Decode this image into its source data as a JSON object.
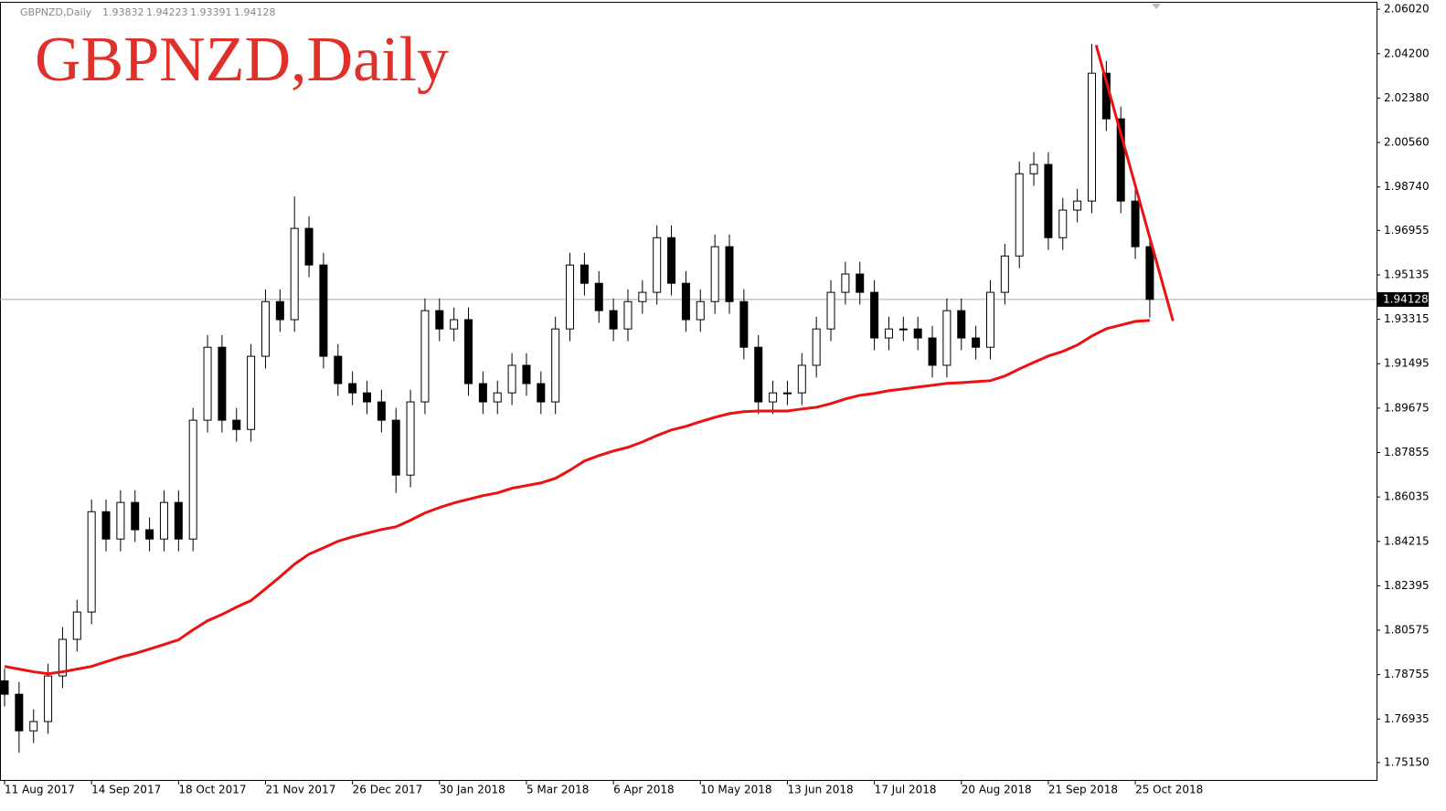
{
  "chart_data": {
    "type": "candlestick",
    "title": "GBPNZD,Daily",
    "info": {
      "symbol": "GBPNZD,Daily",
      "ohlc": [
        1.93832,
        1.94223,
        1.93391,
        1.94128
      ]
    },
    "last_price": 1.94128,
    "categories": [
      "11 Aug 2017",
      null,
      null,
      null,
      null,
      null,
      "14 Sep 2017",
      null,
      null,
      null,
      null,
      null,
      "18 Oct 2017",
      null,
      null,
      null,
      null,
      null,
      "21 Nov 2017",
      null,
      null,
      null,
      null,
      null,
      "26 Dec 2017",
      null,
      null,
      null,
      null,
      null,
      "30 Jan 2018",
      null,
      null,
      null,
      null,
      null,
      "5 Mar 2018",
      null,
      null,
      null,
      null,
      null,
      "6 Apr 2018",
      null,
      null,
      null,
      null,
      null,
      "10 May 2018",
      null,
      null,
      null,
      null,
      null,
      "13 Jun 2018",
      null,
      null,
      null,
      null,
      null,
      "17 Jul 2018",
      null,
      null,
      null,
      null,
      null,
      "20 Aug 2018",
      null,
      null,
      null,
      null,
      null,
      "21 Sep 2018",
      null,
      null,
      null,
      null,
      null,
      "25 Oct 2018",
      null
    ],
    "open": [
      1.785,
      1.7795,
      1.7645,
      1.7683,
      1.787,
      1.802,
      1.8132,
      1.8543,
      1.8431,
      1.8581,
      1.8469,
      1.8431,
      1.8581,
      1.8431,
      1.8918,
      1.9217,
      1.8918,
      1.888,
      1.918,
      1.9404,
      1.933,
      1.9704,
      1.9554,
      1.918,
      1.9068,
      1.903,
      1.8993,
      1.8918,
      1.8693,
      1.8993,
      1.9367,
      1.9292,
      1.933,
      1.9068,
      1.8993,
      1.903,
      1.9143,
      1.9068,
      1.8993,
      1.9292,
      1.9554,
      1.9479,
      1.9367,
      1.9292,
      1.9404,
      1.9442,
      1.9666,
      1.9479,
      1.933,
      1.9404,
      1.9629,
      1.9404,
      1.9217,
      1.8993,
      1.903,
      1.903,
      1.9143,
      1.9292,
      1.9442,
      1.9517,
      1.9442,
      1.9255,
      1.9292,
      1.9292,
      1.9255,
      1.9143,
      1.9367,
      1.9255,
      1.9217,
      1.9442,
      1.9591,
      1.9928,
      1.9966,
      1.9666,
      1.9779,
      1.9816,
      2.034,
      2.0153,
      1.9816,
      1.9629
    ],
    "high": [
      1.79,
      1.7845,
      1.7733,
      1.792,
      1.807,
      1.8182,
      1.8593,
      1.8593,
      1.8631,
      1.8631,
      1.8519,
      1.8631,
      1.8631,
      1.8968,
      1.9267,
      1.9267,
      1.8968,
      1.923,
      1.9454,
      1.9454,
      1.9835,
      1.9754,
      1.9604,
      1.923,
      1.9118,
      1.908,
      1.9043,
      1.8968,
      1.9043,
      1.9417,
      1.9417,
      1.938,
      1.938,
      1.9118,
      1.908,
      1.9193,
      1.9193,
      1.9118,
      1.9342,
      1.9604,
      1.9604,
      1.9529,
      1.9417,
      1.9454,
      1.9492,
      1.9716,
      1.9716,
      1.9529,
      1.9454,
      1.9679,
      1.9679,
      1.9454,
      1.9267,
      1.908,
      1.908,
      1.9193,
      1.9342,
      1.9492,
      1.9567,
      1.9567,
      1.9492,
      1.9342,
      1.9342,
      1.9342,
      1.9305,
      1.9417,
      1.9417,
      1.9305,
      1.9492,
      1.9641,
      1.9978,
      2.0016,
      2.0016,
      1.9829,
      1.9866,
      2.046,
      2.039,
      2.0203,
      1.9866,
      1.9679
    ],
    "low": [
      1.7745,
      1.7555,
      1.7595,
      1.7633,
      1.782,
      1.797,
      1.8082,
      1.8381,
      1.8381,
      1.8419,
      1.8381,
      1.8381,
      1.8381,
      1.8381,
      1.8868,
      1.8868,
      1.883,
      1.883,
      1.913,
      1.928,
      1.928,
      1.9504,
      1.913,
      1.9018,
      1.898,
      1.8943,
      1.8868,
      1.862,
      1.8643,
      1.8943,
      1.9242,
      1.9242,
      1.9018,
      1.8943,
      1.8943,
      1.898,
      1.9018,
      1.8943,
      1.8943,
      1.9242,
      1.9429,
      1.9317,
      1.9242,
      1.9242,
      1.9354,
      1.9392,
      1.9429,
      1.928,
      1.928,
      1.9354,
      1.9354,
      1.9167,
      1.8943,
      1.8943,
      1.898,
      1.898,
      1.9093,
      1.9242,
      1.9392,
      1.9392,
      1.9205,
      1.9205,
      1.9242,
      1.9205,
      1.9093,
      1.9093,
      1.9205,
      1.9167,
      1.9167,
      1.9392,
      1.9541,
      1.9878,
      1.9616,
      1.9616,
      1.9729,
      1.9766,
      2.0103,
      1.9766,
      1.9579,
      1.9339
    ],
    "close": [
      1.7795,
      1.7645,
      1.7683,
      1.787,
      1.802,
      1.8132,
      1.8543,
      1.8431,
      1.8581,
      1.8469,
      1.8431,
      1.8581,
      1.8431,
      1.8918,
      1.9217,
      1.8918,
      1.888,
      1.918,
      1.9404,
      1.933,
      1.9704,
      1.9554,
      1.918,
      1.9068,
      1.903,
      1.8993,
      1.8918,
      1.8693,
      1.8993,
      1.9367,
      1.9292,
      1.933,
      1.9068,
      1.8993,
      1.903,
      1.9143,
      1.9068,
      1.8993,
      1.9292,
      1.9554,
      1.9479,
      1.9367,
      1.9292,
      1.9404,
      1.9442,
      1.9666,
      1.9479,
      1.933,
      1.9404,
      1.9629,
      1.9404,
      1.9217,
      1.8993,
      1.903,
      1.903,
      1.9143,
      1.9292,
      1.9442,
      1.9517,
      1.9442,
      1.9255,
      1.9292,
      1.9292,
      1.9255,
      1.9143,
      1.9367,
      1.9255,
      1.9217,
      1.9442,
      1.9591,
      1.9928,
      1.9966,
      1.9666,
      1.9779,
      1.9816,
      2.034,
      2.0153,
      1.9816,
      1.9629,
      1.9413
    ],
    "moving_average": {
      "color": "#ee1111",
      "values": [
        1.7909,
        1.7898,
        1.7887,
        1.7879,
        1.7887,
        1.7898,
        1.7909,
        1.7928,
        1.7947,
        1.7962,
        1.798,
        1.7999,
        1.8018,
        1.8059,
        1.8096,
        1.8122,
        1.8152,
        1.8179,
        1.8227,
        1.8276,
        1.8328,
        1.8369,
        1.8395,
        1.8422,
        1.844,
        1.8455,
        1.847,
        1.8481,
        1.8508,
        1.8538,
        1.856,
        1.8579,
        1.8594,
        1.8609,
        1.862,
        1.8639,
        1.865,
        1.8661,
        1.868,
        1.8713,
        1.8751,
        1.8773,
        1.8792,
        1.8807,
        1.8829,
        1.8855,
        1.8878,
        1.8893,
        1.8912,
        1.893,
        1.8945,
        1.8953,
        1.8956,
        1.8956,
        1.8956,
        1.8964,
        1.8971,
        1.8986,
        1.9005,
        1.902,
        1.9028,
        1.9039,
        1.9046,
        1.9054,
        1.9061,
        1.9069,
        1.9072,
        1.9076,
        1.908,
        1.9099,
        1.9128,
        1.9155,
        1.9181,
        1.92,
        1.9226,
        1.9263,
        1.9293,
        1.9308,
        1.9323,
        1.9327
      ]
    },
    "trendline": {
      "color": "#ee1111",
      "x": [
        75.3,
        80.6
      ],
      "y": [
        2.0455,
        1.9325
      ]
    },
    "ylim": [
      1.744,
      2.064
    ],
    "yticks": [
      {
        "value": 2.0602,
        "label": "2.06020"
      },
      {
        "value": 2.042,
        "label": "2.04200"
      },
      {
        "value": 2.0238,
        "label": "2.02380"
      },
      {
        "value": 2.0056,
        "label": "2.00560"
      },
      {
        "value": 1.9874,
        "label": "1.98740"
      },
      1.96955,
      {
        "value": 1.95135,
        "label": "1.95135"
      },
      1.93315,
      1.91495,
      1.89675,
      1.87855,
      1.86035,
      1.84215,
      1.82395,
      1.80575,
      1.78755,
      1.76935,
      {
        "value": 1.7515,
        "label": "1.75150"
      }
    ]
  }
}
